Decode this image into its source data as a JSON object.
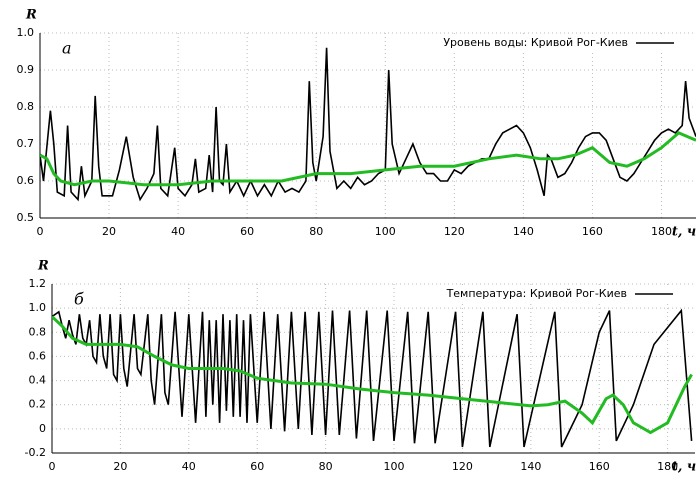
{
  "chart_data": [
    {
      "type": "line",
      "annotation": "а",
      "ylabel": "R",
      "xlabel": "t, ч",
      "xlim": [
        0,
        190
      ],
      "ylim": [
        0.5,
        1.0
      ],
      "xticks": [
        0,
        20,
        40,
        60,
        80,
        100,
        120,
        140,
        160,
        180
      ],
      "yticks": [
        0.5,
        0.6,
        0.7,
        0.8,
        0.9,
        {
          "value": 1,
          "label": "1.0"
        }
      ],
      "grid": true,
      "legend": "upper right",
      "series": [
        {
          "name": "Уровень воды: Кривой Рог-Киев",
          "color": "#000000",
          "x": [
            0,
            1,
            3,
            4,
            5,
            7,
            8,
            9,
            11,
            12,
            13,
            15,
            16,
            17,
            18,
            21,
            23,
            25,
            27,
            29,
            31,
            33,
            34,
            35,
            37,
            39,
            40,
            42,
            44,
            45,
            46,
            48,
            49,
            50,
            51,
            52,
            53,
            54,
            55,
            57,
            59,
            61,
            63,
            65,
            67,
            69,
            71,
            73,
            75,
            77,
            78,
            79,
            80,
            82,
            83,
            84,
            86,
            88,
            90,
            92,
            94,
            96,
            98,
            100,
            101,
            102,
            104,
            106,
            108,
            110,
            112,
            114,
            116,
            118,
            120,
            122,
            124,
            126,
            128,
            130,
            132,
            134,
            136,
            138,
            140,
            142,
            144,
            146,
            147,
            148,
            150,
            152,
            154,
            156,
            158,
            160,
            162,
            164,
            166,
            168,
            170,
            172,
            174,
            176,
            178,
            180,
            182,
            184,
            186,
            187,
            188,
            190
          ],
          "values": [
            0.67,
            0.6,
            0.79,
            0.7,
            0.57,
            0.56,
            0.75,
            0.57,
            0.55,
            0.64,
            0.56,
            0.6,
            0.83,
            0.64,
            0.56,
            0.56,
            0.63,
            0.72,
            0.61,
            0.55,
            0.58,
            0.62,
            0.75,
            0.58,
            0.56,
            0.69,
            0.58,
            0.56,
            0.59,
            0.66,
            0.57,
            0.58,
            0.67,
            0.57,
            0.8,
            0.6,
            0.59,
            0.7,
            0.57,
            0.6,
            0.56,
            0.6,
            0.56,
            0.59,
            0.56,
            0.6,
            0.57,
            0.58,
            0.57,
            0.6,
            0.87,
            0.65,
            0.6,
            0.72,
            0.96,
            0.68,
            0.58,
            0.6,
            0.58,
            0.61,
            0.59,
            0.6,
            0.62,
            0.63,
            0.9,
            0.7,
            0.62,
            0.66,
            0.7,
            0.65,
            0.62,
            0.62,
            0.6,
            0.6,
            0.63,
            0.62,
            0.64,
            0.65,
            0.66,
            0.66,
            0.7,
            0.73,
            0.74,
            0.75,
            0.73,
            0.69,
            0.63,
            0.56,
            0.67,
            0.66,
            0.61,
            0.62,
            0.65,
            0.69,
            0.72,
            0.73,
            0.73,
            0.71,
            0.66,
            0.61,
            0.6,
            0.62,
            0.65,
            0.68,
            0.71,
            0.73,
            0.74,
            0.73,
            0.75,
            0.87,
            0.77,
            0.72
          ]
        },
        {
          "color": "#22bb22",
          "x": [
            0,
            2,
            4,
            6,
            10,
            15,
            20,
            30,
            40,
            50,
            60,
            70,
            80,
            90,
            100,
            110,
            120,
            130,
            138,
            145,
            150,
            155,
            160,
            165,
            170,
            175,
            180,
            185,
            190
          ],
          "values": [
            0.67,
            0.66,
            0.62,
            0.6,
            0.59,
            0.6,
            0.6,
            0.59,
            0.59,
            0.6,
            0.6,
            0.6,
            0.62,
            0.62,
            0.63,
            0.64,
            0.64,
            0.66,
            0.67,
            0.66,
            0.66,
            0.67,
            0.69,
            0.65,
            0.64,
            0.66,
            0.69,
            0.73,
            0.71
          ]
        }
      ]
    },
    {
      "type": "line",
      "annotation": "б",
      "ylabel": "R",
      "xlabel": "t, ч",
      "xlim": [
        0,
        188
      ],
      "ylim": [
        -0.2,
        1.2
      ],
      "xticks": [
        0,
        20,
        40,
        60,
        80,
        100,
        120,
        140,
        160,
        180
      ],
      "yticks": [
        -0.2,
        0,
        0.2,
        0.4,
        0.6,
        0.8,
        {
          "value": 1,
          "label": "1.0"
        },
        1.2
      ],
      "grid": true,
      "legend": "upper right",
      "series": [
        {
          "name": "Температура: Кривой Рог-Киев",
          "color": "#000000",
          "x": [
            0,
            2,
            3,
            4,
            5,
            6,
            7,
            8,
            9,
            10,
            11,
            12,
            13,
            14,
            15,
            16,
            17,
            18,
            19,
            20,
            21,
            22,
            24,
            25,
            26,
            28,
            29,
            30,
            32,
            33,
            34,
            36,
            38,
            40,
            42,
            44,
            45,
            46,
            47,
            48,
            49,
            50,
            51,
            52,
            53,
            54,
            55,
            56,
            57,
            58,
            60,
            62,
            64,
            66,
            68,
            70,
            72,
            74,
            76,
            78,
            80,
            82,
            84,
            87,
            89,
            92,
            94,
            98,
            100,
            104,
            106,
            110,
            112,
            118,
            120,
            126,
            128,
            136,
            138,
            147,
            149,
            155,
            160,
            163,
            165,
            170,
            176,
            184,
            187
          ],
          "values": [
            0.93,
            0.97,
            0.85,
            0.75,
            0.9,
            0.78,
            0.7,
            0.95,
            0.75,
            0.7,
            0.9,
            0.6,
            0.55,
            0.95,
            0.6,
            0.5,
            0.95,
            0.45,
            0.4,
            0.95,
            0.5,
            0.35,
            0.95,
            0.5,
            0.45,
            0.95,
            0.4,
            0.2,
            0.95,
            0.3,
            0.2,
            0.97,
            0.1,
            0.95,
            0.05,
            0.97,
            0.1,
            0.9,
            0.2,
            0.9,
            0.05,
            0.95,
            0.15,
            0.9,
            0.1,
            0.95,
            0.1,
            0.9,
            0.05,
            0.95,
            0.05,
            0.97,
            0,
            0.95,
            -0.02,
            0.97,
            0,
            0.97,
            -0.05,
            0.97,
            -0.05,
            0.98,
            -0.05,
            0.98,
            -0.08,
            0.98,
            -0.1,
            0.98,
            -0.1,
            0.97,
            -0.12,
            0.97,
            -0.12,
            0.97,
            -0.15,
            0.97,
            -0.15,
            0.95,
            -0.15,
            0.97,
            -0.15,
            0.2,
            0.8,
            0.98,
            -0.1,
            0.2,
            0.7,
            0.98,
            -0.1
          ]
        },
        {
          "color": "#22bb22",
          "x": [
            0,
            3,
            6,
            10,
            20,
            25,
            30,
            35,
            40,
            45,
            50,
            55,
            60,
            70,
            80,
            90,
            100,
            110,
            120,
            130,
            140,
            145,
            150,
            155,
            158,
            162,
            164,
            167,
            170,
            175,
            180,
            185,
            187
          ],
          "values": [
            0.93,
            0.85,
            0.75,
            0.7,
            0.7,
            0.68,
            0.6,
            0.53,
            0.5,
            0.5,
            0.5,
            0.48,
            0.42,
            0.38,
            0.37,
            0.33,
            0.3,
            0.28,
            0.25,
            0.22,
            0.19,
            0.2,
            0.23,
            0.13,
            0.05,
            0.25,
            0.28,
            0.2,
            0.05,
            -0.03,
            0.05,
            0.35,
            0.45
          ]
        }
      ]
    }
  ]
}
